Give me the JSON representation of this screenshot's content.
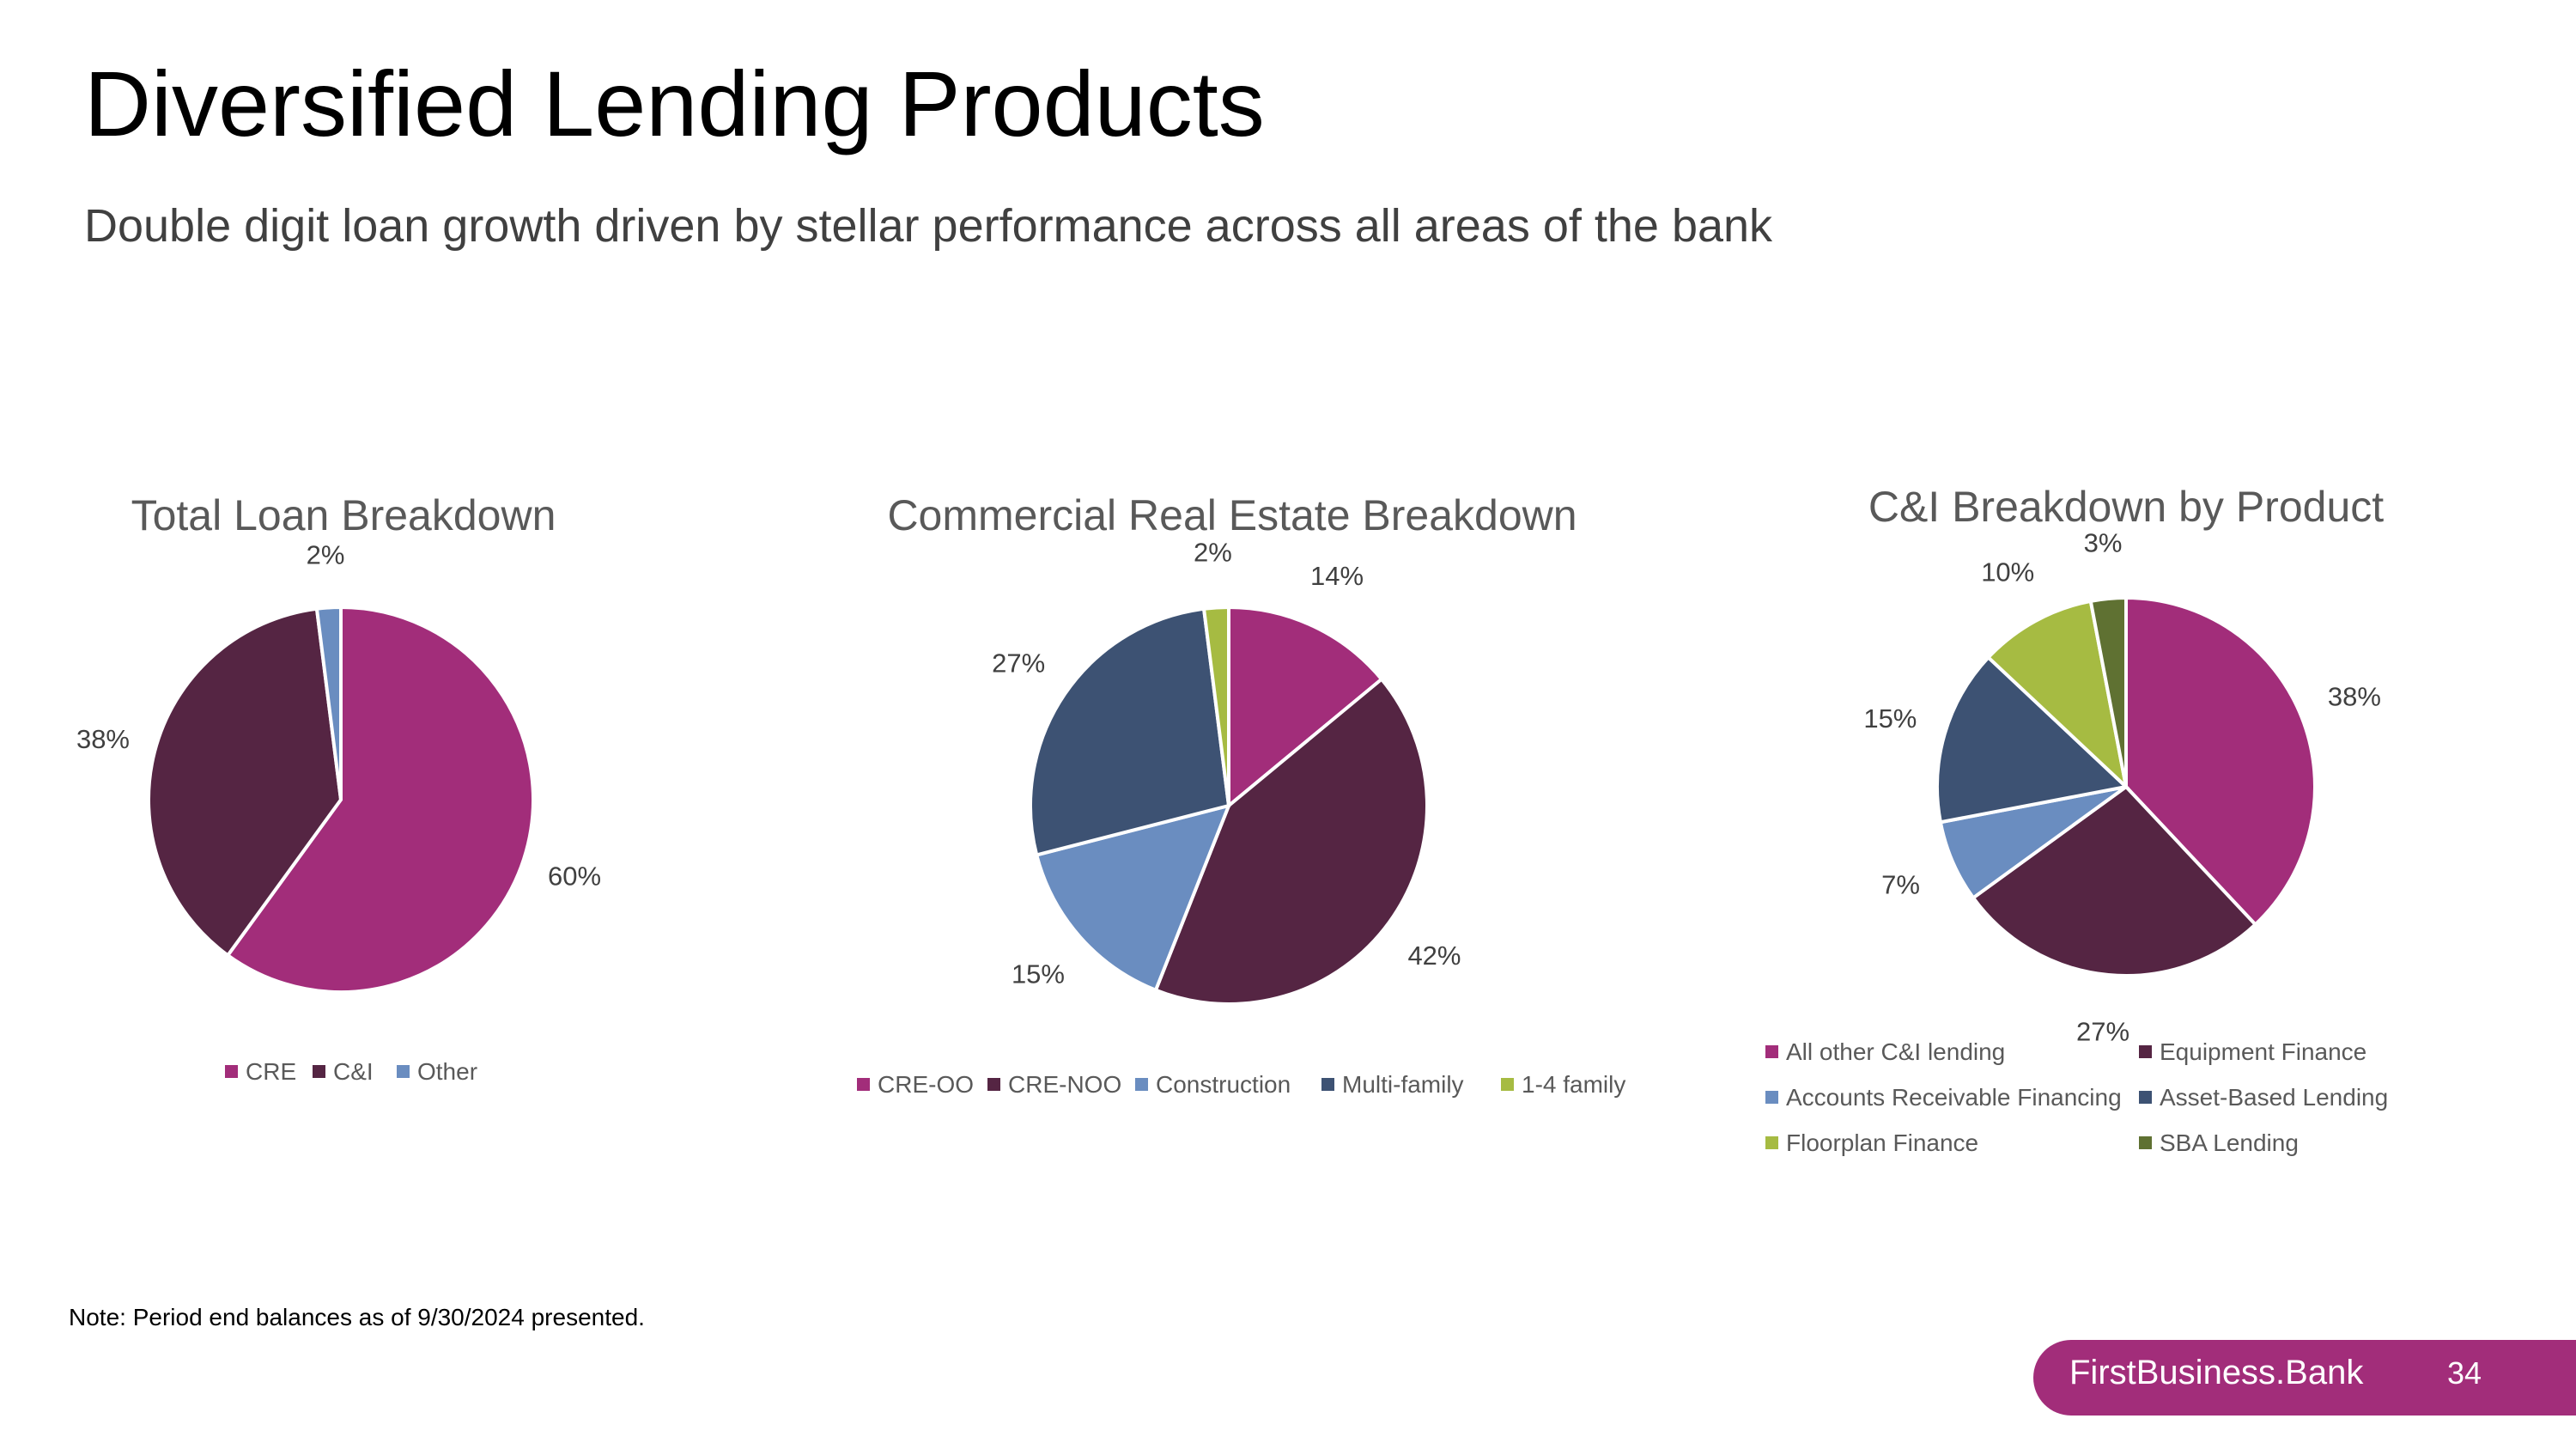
{
  "page": {
    "title": "Diversified Lending Products",
    "subtitle": "Double digit loan growth driven by stellar performance across all areas of the bank",
    "note": "Note: Period end balances as of 9/30/2024 presented.",
    "brand": "FirstBusiness.Bank",
    "page_number": "34"
  },
  "colors": {
    "magenta": "#a22d7a",
    "plum": "#552543",
    "light_blue": "#6a8dc0",
    "navy": "#3d5273",
    "lime": "#a6bb42",
    "olive": "#5f7132"
  },
  "chart_data": [
    {
      "type": "pie",
      "title": "Total Loan Breakdown",
      "categories": [
        "CRE",
        "C&I",
        "Other"
      ],
      "values": [
        60,
        38,
        2
      ],
      "labels": [
        "60%",
        "38%",
        "2%"
      ],
      "colors": [
        "#a22d7a",
        "#552543",
        "#6a8dc0"
      ],
      "legend": "bottom"
    },
    {
      "type": "pie",
      "title": "Commercial Real Estate Breakdown",
      "categories": [
        "CRE-OO",
        "CRE-NOO",
        "Construction",
        "Multi-family",
        "1-4 family"
      ],
      "values": [
        14,
        42,
        15,
        27,
        2
      ],
      "labels": [
        "14%",
        "42%",
        "15%",
        "27%",
        "2%"
      ],
      "colors": [
        "#a22d7a",
        "#552543",
        "#6a8dc0",
        "#3d5273",
        "#a6bb42"
      ],
      "legend": "bottom"
    },
    {
      "type": "pie",
      "title": "C&I Breakdown by Product",
      "categories": [
        "All other C&I lending",
        "Equipment Finance",
        "Accounts Receivable Financing",
        "Asset-Based Lending",
        "Floorplan Finance",
        "SBA Lending"
      ],
      "values": [
        38,
        27,
        7,
        15,
        10,
        3
      ],
      "labels": [
        "38%",
        "27%",
        "7%",
        "15%",
        "10%",
        "3%"
      ],
      "colors": [
        "#a22d7a",
        "#552543",
        "#6a8dc0",
        "#3d5273",
        "#a6bb42",
        "#5f7132"
      ],
      "legend": "bottom"
    }
  ]
}
